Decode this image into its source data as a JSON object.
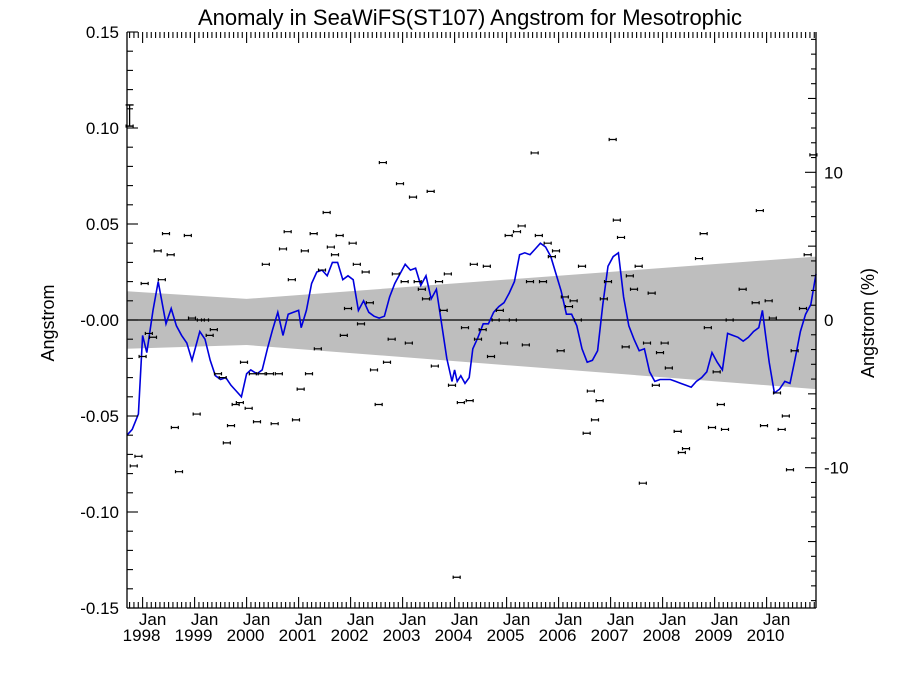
{
  "chart_data": {
    "type": "scatter",
    "title": "Anomaly in SeaWiFS(ST107) Angstrom for Mesotrophic",
    "ylabel": "Angstrom",
    "ylabel_right": "Angstrom (%)",
    "ylim": [
      -0.15,
      0.15
    ],
    "ylim_right_percent": [
      -19.5,
      19.5
    ],
    "xlim": [
      1997.7,
      2010.95
    ],
    "y_ticks": [
      {
        "value": 0.15,
        "label": "0.15"
      },
      {
        "value": 0.1,
        "label": "0.10"
      },
      {
        "value": 0.05,
        "label": "0.05"
      },
      {
        "value": 0.0,
        "label": "-0.00"
      },
      {
        "value": -0.05,
        "label": "-0.05"
      },
      {
        "value": -0.1,
        "label": "-0.10"
      },
      {
        "value": -0.15,
        "label": "-0.15"
      }
    ],
    "y_right_ticks": [
      {
        "value": 10,
        "label": "10"
      },
      {
        "value": 0,
        "label": "0"
      },
      {
        "value": -10,
        "label": "-10"
      }
    ],
    "x_ticks": [
      {
        "value": 1998.0,
        "month": "Jan",
        "year": "1998"
      },
      {
        "value": 1999.0,
        "month": "Jan",
        "year": "1999"
      },
      {
        "value": 2000.0,
        "month": "Jan",
        "year": "2000"
      },
      {
        "value": 2001.0,
        "month": "Jan",
        "year": "2001"
      },
      {
        "value": 2002.0,
        "month": "Jan",
        "year": "2002"
      },
      {
        "value": 2003.0,
        "month": "Jan",
        "year": "2003"
      },
      {
        "value": 2004.0,
        "month": "Jan",
        "year": "2004"
      },
      {
        "value": 2005.0,
        "month": "Jan",
        "year": "2005"
      },
      {
        "value": 2006.0,
        "month": "Jan",
        "year": "2006"
      },
      {
        "value": 2007.0,
        "month": "Jan",
        "year": "2007"
      },
      {
        "value": 2008.0,
        "month": "Jan",
        "year": "2008"
      },
      {
        "value": 2009.0,
        "month": "Jan",
        "year": "2009"
      },
      {
        "value": 2010.0,
        "month": "Jan",
        "year": "2010"
      }
    ],
    "zero_line": 0.0,
    "confidence_band": {
      "x": [
        1997.7,
        2000.0,
        2010.95
      ],
      "upper": [
        0.015,
        0.011,
        0.033
      ],
      "lower": [
        -0.015,
        -0.013,
        -0.036
      ],
      "color": "#bebebe"
    },
    "error_bar_scale": {
      "x": 1997.75,
      "y_top": 0.112,
      "y_bottom": 0.101
    },
    "scatter_series": {
      "name": "Monthly anomaly",
      "color": "#000000",
      "points": [
        [
          1997.75,
          0.101
        ],
        [
          1997.83,
          -0.076
        ],
        [
          1997.92,
          -0.071
        ],
        [
          1998.0,
          -0.019
        ],
        [
          1998.04,
          0.019
        ],
        [
          1998.12,
          -0.007
        ],
        [
          1998.2,
          -0.009
        ],
        [
          1998.29,
          0.036
        ],
        [
          1998.37,
          0.021
        ],
        [
          1998.45,
          0.045
        ],
        [
          1998.54,
          0.034
        ],
        [
          1998.62,
          -0.056
        ],
        [
          1998.7,
          -0.079
        ],
        [
          1998.87,
          0.044
        ],
        [
          1998.95,
          0.001
        ],
        [
          1999.04,
          -0.049
        ],
        [
          1999.12,
          0.0
        ],
        [
          1999.2,
          0.0
        ],
        [
          1999.29,
          -0.008
        ],
        [
          1999.37,
          -0.005
        ],
        [
          1999.45,
          -0.028
        ],
        [
          1999.54,
          -0.03
        ],
        [
          1999.62,
          -0.064
        ],
        [
          1999.7,
          -0.055
        ],
        [
          1999.79,
          -0.044
        ],
        [
          1999.87,
          -0.043
        ],
        [
          1999.95,
          -0.022
        ],
        [
          2000.04,
          -0.046
        ],
        [
          2000.12,
          -0.028
        ],
        [
          2000.2,
          -0.053
        ],
        [
          2000.29,
          -0.028
        ],
        [
          2000.37,
          0.029
        ],
        [
          2000.45,
          -0.028
        ],
        [
          2000.54,
          -0.054
        ],
        [
          2000.62,
          -0.028
        ],
        [
          2000.7,
          0.037
        ],
        [
          2000.79,
          0.046
        ],
        [
          2000.87,
          0.021
        ],
        [
          2000.95,
          -0.052
        ],
        [
          2001.04,
          -0.036
        ],
        [
          2001.12,
          0.036
        ],
        [
          2001.2,
          -0.028
        ],
        [
          2001.29,
          0.045
        ],
        [
          2001.37,
          -0.015
        ],
        [
          2001.45,
          0.026
        ],
        [
          2001.54,
          0.056
        ],
        [
          2001.62,
          0.038
        ],
        [
          2001.7,
          0.034
        ],
        [
          2001.79,
          0.044
        ],
        [
          2001.87,
          -0.008
        ],
        [
          2001.95,
          0.006
        ],
        [
          2002.04,
          0.04
        ],
        [
          2002.12,
          0.029
        ],
        [
          2002.2,
          -0.002
        ],
        [
          2002.29,
          0.025
        ],
        [
          2002.37,
          0.009
        ],
        [
          2002.45,
          -0.026
        ],
        [
          2002.54,
          -0.044
        ],
        [
          2002.62,
          0.082
        ],
        [
          2002.7,
          -0.022
        ],
        [
          2002.79,
          -0.01
        ],
        [
          2002.87,
          0.024
        ],
        [
          2002.95,
          0.071
        ],
        [
          2003.04,
          0.02
        ],
        [
          2003.12,
          -0.012
        ],
        [
          2003.2,
          0.064
        ],
        [
          2003.29,
          0.02
        ],
        [
          2003.37,
          0.016
        ],
        [
          2003.45,
          0.011
        ],
        [
          2003.54,
          0.067
        ],
        [
          2003.62,
          -0.024
        ],
        [
          2003.7,
          0.02
        ],
        [
          2003.79,
          0.005
        ],
        [
          2003.87,
          0.024
        ],
        [
          2003.95,
          -0.034
        ],
        [
          2004.04,
          -0.134
        ],
        [
          2004.12,
          -0.043
        ],
        [
          2004.2,
          -0.004
        ],
        [
          2004.29,
          -0.042
        ],
        [
          2004.37,
          0.029
        ],
        [
          2004.45,
          -0.01
        ],
        [
          2004.54,
          -0.005
        ],
        [
          2004.62,
          0.028
        ],
        [
          2004.7,
          -0.019
        ],
        [
          2004.79,
          0.0
        ],
        [
          2004.87,
          0.005
        ],
        [
          2004.95,
          -0.012
        ],
        [
          2005.04,
          0.044
        ],
        [
          2005.12,
          0.0
        ],
        [
          2005.2,
          0.046
        ],
        [
          2005.29,
          0.049
        ],
        [
          2005.37,
          -0.013
        ],
        [
          2005.45,
          0.02
        ],
        [
          2005.54,
          0.087
        ],
        [
          2005.62,
          0.044
        ],
        [
          2005.7,
          0.02
        ],
        [
          2005.79,
          0.04
        ],
        [
          2005.87,
          0.033
        ],
        [
          2005.95,
          0.036
        ],
        [
          2006.04,
          -0.016
        ],
        [
          2006.12,
          0.012
        ],
        [
          2006.2,
          0.007
        ],
        [
          2006.29,
          0.01
        ],
        [
          2006.37,
          0.0
        ],
        [
          2006.45,
          0.028
        ],
        [
          2006.54,
          -0.059
        ],
        [
          2006.62,
          -0.037
        ],
        [
          2006.7,
          -0.052
        ],
        [
          2006.79,
          -0.042
        ],
        [
          2006.87,
          0.011
        ],
        [
          2006.95,
          0.02
        ],
        [
          2007.04,
          0.094
        ],
        [
          2007.12,
          0.052
        ],
        [
          2007.2,
          0.043
        ],
        [
          2007.29,
          -0.014
        ],
        [
          2007.37,
          0.023
        ],
        [
          2007.45,
          0.016
        ],
        [
          2007.54,
          0.028
        ],
        [
          2007.62,
          -0.085
        ],
        [
          2007.7,
          -0.012
        ],
        [
          2007.79,
          0.014
        ],
        [
          2007.87,
          -0.034
        ],
        [
          2007.95,
          -0.017
        ],
        [
          2008.04,
          -0.012
        ],
        [
          2008.12,
          -0.025
        ],
        [
          2008.29,
          -0.058
        ],
        [
          2008.37,
          -0.069
        ],
        [
          2008.45,
          -0.067
        ],
        [
          2008.7,
          0.032
        ],
        [
          2008.79,
          0.045
        ],
        [
          2008.87,
          -0.004
        ],
        [
          2008.95,
          -0.056
        ],
        [
          2009.04,
          -0.027
        ],
        [
          2009.12,
          -0.044
        ],
        [
          2009.2,
          -0.057
        ],
        [
          2009.29,
          0.0
        ],
        [
          2009.54,
          0.016
        ],
        [
          2009.79,
          0.009
        ],
        [
          2009.87,
          0.057
        ],
        [
          2009.95,
          -0.055
        ],
        [
          2010.04,
          0.01
        ],
        [
          2010.12,
          0.001
        ],
        [
          2010.2,
          -0.038
        ],
        [
          2010.29,
          -0.057
        ],
        [
          2010.37,
          -0.05
        ],
        [
          2010.45,
          -0.078
        ],
        [
          2010.54,
          -0.016
        ],
        [
          2010.7,
          0.006
        ],
        [
          2010.79,
          0.034
        ],
        [
          2010.9,
          0.086
        ]
      ]
    },
    "line_series": {
      "name": "Smoothed anomaly",
      "color": "#0000dd",
      "points": [
        [
          1997.7,
          -0.06
        ],
        [
          1997.8,
          -0.057
        ],
        [
          1997.92,
          -0.049
        ],
        [
          1998.0,
          -0.008
        ],
        [
          1998.08,
          -0.017
        ],
        [
          1998.2,
          0.005
        ],
        [
          1998.3,
          0.02
        ],
        [
          1998.45,
          -0.002
        ],
        [
          1998.55,
          0.006
        ],
        [
          1998.65,
          -0.003
        ],
        [
          1998.75,
          -0.008
        ],
        [
          1998.85,
          -0.012
        ],
        [
          1998.95,
          -0.021
        ],
        [
          1999.1,
          -0.006
        ],
        [
          1999.2,
          -0.01
        ],
        [
          1999.3,
          -0.021
        ],
        [
          1999.4,
          -0.029
        ],
        [
          1999.5,
          -0.031
        ],
        [
          1999.6,
          -0.03
        ],
        [
          1999.7,
          -0.034
        ],
        [
          1999.8,
          -0.037
        ],
        [
          1999.9,
          -0.04
        ],
        [
          2000.0,
          -0.028
        ],
        [
          2000.08,
          -0.026
        ],
        [
          2000.2,
          -0.028
        ],
        [
          2000.3,
          -0.026
        ],
        [
          2000.4,
          -0.015
        ],
        [
          2000.5,
          -0.005
        ],
        [
          2000.6,
          0.004
        ],
        [
          2000.7,
          -0.008
        ],
        [
          2000.8,
          0.003
        ],
        [
          2000.9,
          0.004
        ],
        [
          2001.0,
          0.005
        ],
        [
          2001.05,
          -0.004
        ],
        [
          2001.15,
          0.005
        ],
        [
          2001.25,
          0.019
        ],
        [
          2001.35,
          0.025
        ],
        [
          2001.45,
          0.026
        ],
        [
          2001.55,
          0.023
        ],
        [
          2001.65,
          0.03
        ],
        [
          2001.75,
          0.03
        ],
        [
          2001.85,
          0.021
        ],
        [
          2001.95,
          0.023
        ],
        [
          2002.05,
          0.021
        ],
        [
          2002.15,
          0.005
        ],
        [
          2002.25,
          0.01
        ],
        [
          2002.35,
          0.004
        ],
        [
          2002.45,
          0.002
        ],
        [
          2002.55,
          0.001
        ],
        [
          2002.65,
          0.002
        ],
        [
          2002.75,
          0.012
        ],
        [
          2002.85,
          0.019
        ],
        [
          2002.95,
          0.024
        ],
        [
          2003.05,
          0.029
        ],
        [
          2003.15,
          0.026
        ],
        [
          2003.25,
          0.027
        ],
        [
          2003.35,
          0.018
        ],
        [
          2003.45,
          0.023
        ],
        [
          2003.55,
          0.011
        ],
        [
          2003.65,
          0.016
        ],
        [
          2003.75,
          -0.002
        ],
        [
          2003.85,
          -0.02
        ],
        [
          2003.95,
          -0.032
        ],
        [
          2004.0,
          -0.026
        ],
        [
          2004.05,
          -0.032
        ],
        [
          2004.12,
          -0.029
        ],
        [
          2004.2,
          -0.033
        ],
        [
          2004.28,
          -0.03
        ],
        [
          2004.35,
          -0.015
        ],
        [
          2004.45,
          -0.009
        ],
        [
          2004.55,
          -0.002
        ],
        [
          2004.65,
          -0.002
        ],
        [
          2004.75,
          0.004
        ],
        [
          2004.85,
          0.007
        ],
        [
          2004.95,
          0.009
        ],
        [
          2005.05,
          0.014
        ],
        [
          2005.15,
          0.02
        ],
        [
          2005.25,
          0.034
        ],
        [
          2005.35,
          0.035
        ],
        [
          2005.45,
          0.034
        ],
        [
          2005.55,
          0.037
        ],
        [
          2005.65,
          0.04
        ],
        [
          2005.75,
          0.038
        ],
        [
          2005.85,
          0.033
        ],
        [
          2005.95,
          0.024
        ],
        [
          2006.05,
          0.015
        ],
        [
          2006.15,
          0.003
        ],
        [
          2006.25,
          0.003
        ],
        [
          2006.35,
          -0.003
        ],
        [
          2006.45,
          -0.015
        ],
        [
          2006.55,
          -0.022
        ],
        [
          2006.65,
          -0.021
        ],
        [
          2006.75,
          -0.016
        ],
        [
          2006.85,
          0.008
        ],
        [
          2006.95,
          0.028
        ],
        [
          2007.05,
          0.033
        ],
        [
          2007.15,
          0.035
        ],
        [
          2007.25,
          0.012
        ],
        [
          2007.35,
          -0.003
        ],
        [
          2007.45,
          -0.01
        ],
        [
          2007.55,
          -0.016
        ],
        [
          2007.65,
          -0.015
        ],
        [
          2007.75,
          -0.027
        ],
        [
          2007.85,
          -0.032
        ],
        [
          2007.95,
          -0.031
        ],
        [
          2008.05,
          -0.031
        ],
        [
          2008.15,
          -0.031
        ],
        [
          2008.25,
          -0.032
        ],
        [
          2008.35,
          -0.033
        ],
        [
          2008.45,
          -0.034
        ],
        [
          2008.55,
          -0.035
        ],
        [
          2008.65,
          -0.032
        ],
        [
          2008.75,
          -0.03
        ],
        [
          2008.85,
          -0.027
        ],
        [
          2008.95,
          -0.017
        ],
        [
          2009.05,
          -0.022
        ],
        [
          2009.15,
          -0.026
        ],
        [
          2009.25,
          -0.007
        ],
        [
          2009.35,
          -0.008
        ],
        [
          2009.45,
          -0.009
        ],
        [
          2009.55,
          -0.011
        ],
        [
          2009.65,
          -0.009
        ],
        [
          2009.75,
          -0.006
        ],
        [
          2009.85,
          -0.004
        ],
        [
          2009.92,
          0.005
        ],
        [
          2009.98,
          -0.008
        ],
        [
          2010.05,
          -0.022
        ],
        [
          2010.15,
          -0.038
        ],
        [
          2010.25,
          -0.036
        ],
        [
          2010.35,
          -0.032
        ],
        [
          2010.45,
          -0.033
        ],
        [
          2010.55,
          -0.02
        ],
        [
          2010.65,
          -0.006
        ],
        [
          2010.75,
          0.003
        ],
        [
          2010.85,
          0.008
        ],
        [
          2010.95,
          0.024
        ]
      ]
    },
    "grid": false,
    "legend": "none"
  }
}
